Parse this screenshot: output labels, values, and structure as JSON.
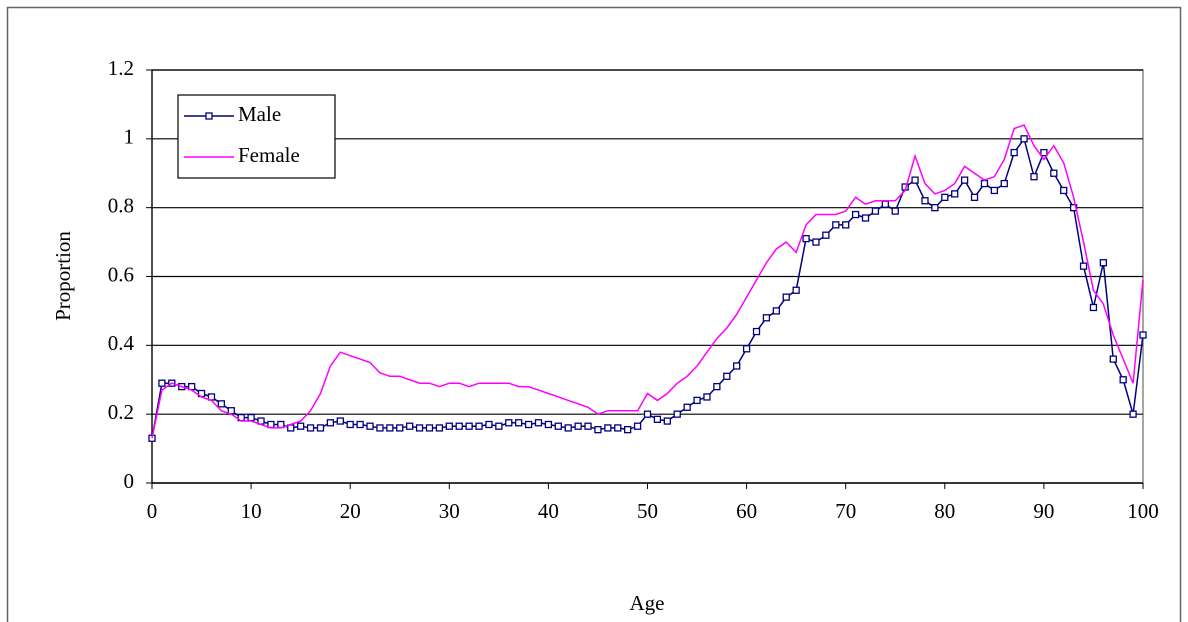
{
  "chart_data": {
    "type": "line",
    "x_label": "Age",
    "y_label": "Proportion",
    "x": [
      0,
      1,
      2,
      3,
      4,
      5,
      6,
      7,
      8,
      9,
      10,
      11,
      12,
      13,
      14,
      15,
      16,
      17,
      18,
      19,
      20,
      21,
      22,
      23,
      24,
      25,
      26,
      27,
      28,
      29,
      30,
      31,
      32,
      33,
      34,
      35,
      36,
      37,
      38,
      39,
      40,
      41,
      42,
      43,
      44,
      45,
      46,
      47,
      48,
      49,
      50,
      51,
      52,
      53,
      54,
      55,
      56,
      57,
      58,
      59,
      60,
      61,
      62,
      63,
      64,
      65,
      66,
      67,
      68,
      69,
      70,
      71,
      72,
      73,
      74,
      75,
      76,
      77,
      78,
      79,
      80,
      81,
      82,
      83,
      84,
      85,
      86,
      87,
      88,
      89,
      90,
      91,
      92,
      93,
      94,
      95,
      96,
      97,
      98,
      99,
      100
    ],
    "series": [
      {
        "name": "Male",
        "color": "#000080",
        "markers": true,
        "values": [
          0.13,
          0.29,
          0.29,
          0.28,
          0.28,
          0.26,
          0.25,
          0.23,
          0.21,
          0.19,
          0.19,
          0.18,
          0.17,
          0.17,
          0.16,
          0.165,
          0.16,
          0.16,
          0.175,
          0.18,
          0.17,
          0.17,
          0.165,
          0.16,
          0.16,
          0.16,
          0.165,
          0.16,
          0.16,
          0.16,
          0.165,
          0.165,
          0.165,
          0.165,
          0.17,
          0.165,
          0.175,
          0.175,
          0.17,
          0.175,
          0.17,
          0.165,
          0.16,
          0.165,
          0.165,
          0.155,
          0.16,
          0.16,
          0.155,
          0.165,
          0.2,
          0.185,
          0.18,
          0.2,
          0.22,
          0.24,
          0.25,
          0.28,
          0.31,
          0.34,
          0.39,
          0.44,
          0.48,
          0.5,
          0.54,
          0.56,
          0.71,
          0.7,
          0.72,
          0.75,
          0.75,
          0.78,
          0.77,
          0.79,
          0.81,
          0.79,
          0.86,
          0.88,
          0.82,
          0.8,
          0.83,
          0.84,
          0.88,
          0.83,
          0.87,
          0.85,
          0.87,
          0.96,
          1.0,
          0.89,
          0.96,
          0.9,
          0.85,
          0.8,
          0.63,
          0.51,
          0.64,
          0.36,
          0.3,
          0.2,
          0.43
        ]
      },
      {
        "name": "Female",
        "color": "#ff00ff",
        "markers": false,
        "values": [
          0.13,
          0.27,
          0.29,
          0.28,
          0.27,
          0.25,
          0.24,
          0.21,
          0.2,
          0.18,
          0.18,
          0.17,
          0.16,
          0.16,
          0.17,
          0.18,
          0.21,
          0.26,
          0.34,
          0.38,
          0.37,
          0.36,
          0.35,
          0.32,
          0.31,
          0.31,
          0.3,
          0.29,
          0.29,
          0.28,
          0.29,
          0.29,
          0.28,
          0.29,
          0.29,
          0.29,
          0.29,
          0.28,
          0.28,
          0.27,
          0.26,
          0.25,
          0.24,
          0.23,
          0.22,
          0.2,
          0.21,
          0.21,
          0.21,
          0.21,
          0.26,
          0.24,
          0.26,
          0.29,
          0.31,
          0.34,
          0.38,
          0.42,
          0.45,
          0.49,
          0.54,
          0.59,
          0.64,
          0.68,
          0.7,
          0.67,
          0.75,
          0.78,
          0.78,
          0.78,
          0.79,
          0.83,
          0.81,
          0.82,
          0.82,
          0.82,
          0.85,
          0.95,
          0.87,
          0.84,
          0.85,
          0.87,
          0.92,
          0.9,
          0.88,
          0.89,
          0.94,
          1.03,
          1.04,
          0.98,
          0.94,
          0.98,
          0.93,
          0.83,
          0.7,
          0.56,
          0.52,
          0.43,
          0.36,
          0.29,
          0.59
        ]
      }
    ],
    "xlim": [
      0,
      100
    ],
    "xticks": [
      0,
      10,
      20,
      30,
      40,
      50,
      60,
      70,
      80,
      90,
      100
    ],
    "ylim": [
      0,
      1.2
    ],
    "yticks": [
      0,
      0.2,
      0.4,
      0.6,
      0.8,
      1,
      1.2
    ],
    "grid": true,
    "legend": "upper left"
  }
}
